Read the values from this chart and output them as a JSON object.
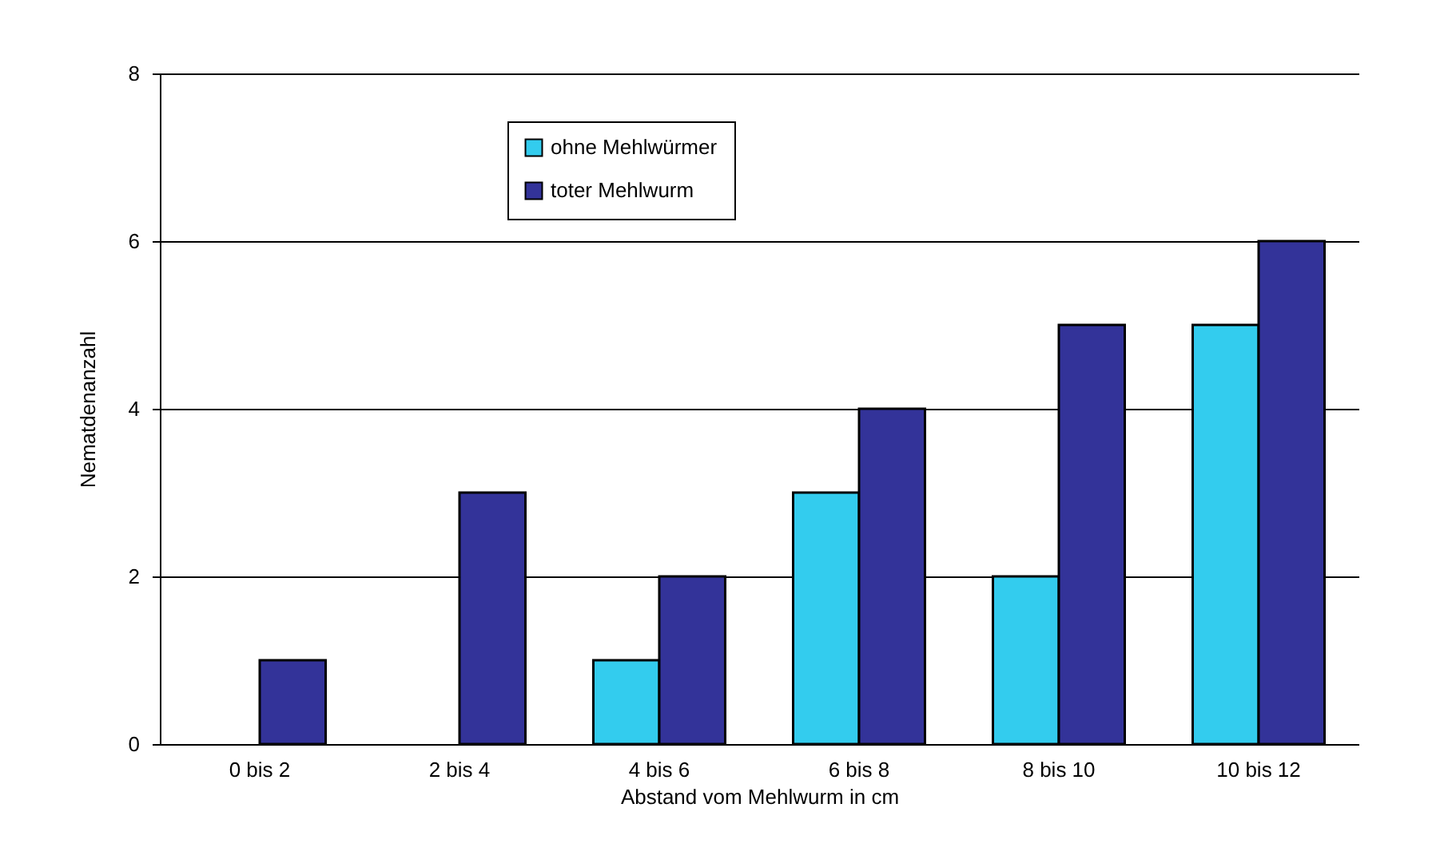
{
  "chart_data": {
    "type": "bar",
    "xlabel": "Abstand vom Mehlwurm in cm",
    "ylabel": "Nematdenanzahl",
    "categories": [
      "0 bis 2",
      "2 bis 4",
      "4 bis 6",
      "6 bis 8",
      "8 bis 10",
      "10 bis 12"
    ],
    "series": [
      {
        "name": "ohne Mehlwürmer",
        "color": "#33ccee",
        "values": [
          0,
          0,
          1,
          3,
          2,
          5
        ]
      },
      {
        "name": "toter Mehlwurm",
        "color": "#333399",
        "values": [
          1,
          3,
          2,
          4,
          5,
          6
        ]
      }
    ],
    "ylim": [
      0,
      8
    ],
    "yticks": [
      0,
      2,
      4,
      6,
      8
    ],
    "grid": "y",
    "legend": "top"
  }
}
